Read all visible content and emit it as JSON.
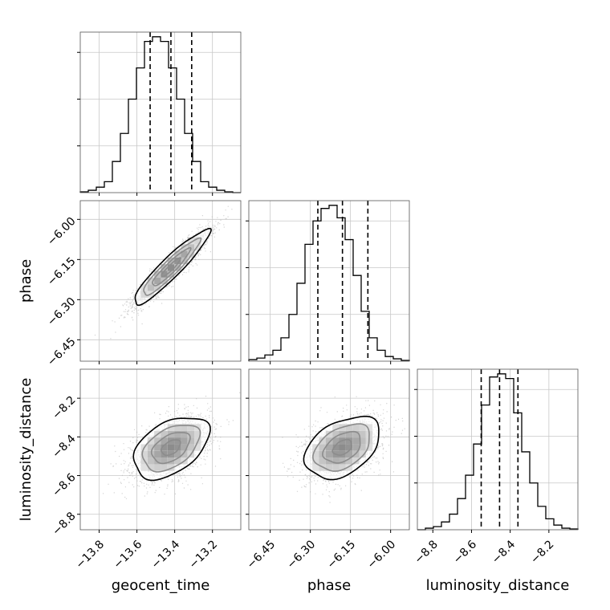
{
  "chart_data": {
    "type": "corner",
    "parameters": [
      "geocent_time",
      "phase",
      "luminosity_distance"
    ],
    "marginals": [
      {
        "parameter": "geocent_time",
        "xlim": [
          -13.9,
          -13.05
        ],
        "ylim": [
          0,
          1.03
        ],
        "bin_edges": [
          -13.9,
          -13.8575,
          -13.815,
          -13.7725,
          -13.73,
          -13.6875,
          -13.645,
          -13.6025,
          -13.56,
          -13.5175,
          -13.475,
          -13.4325,
          -13.39,
          -13.3475,
          -13.305,
          -13.2625,
          -13.22,
          -13.1775,
          -13.135,
          -13.0925,
          -13.05
        ],
        "counts": [
          0.005,
          0.015,
          0.035,
          0.07,
          0.2,
          0.38,
          0.6,
          0.8,
          0.97,
          1.0,
          0.97,
          0.8,
          0.6,
          0.38,
          0.2,
          0.07,
          0.035,
          0.015,
          0.005,
          0.0
        ],
        "quantile_lines": [
          -13.53,
          -13.42,
          -13.31
        ]
      },
      {
        "parameter": "phase",
        "xlim": [
          -6.53,
          -5.93
        ],
        "ylim": [
          0,
          1.03
        ],
        "bin_edges": [
          -6.53,
          -6.5,
          -6.47,
          -6.44,
          -6.41,
          -6.38,
          -6.35,
          -6.32,
          -6.29,
          -6.26,
          -6.23,
          -6.2,
          -6.17,
          -6.14,
          -6.11,
          -6.08,
          -6.05,
          -6.02,
          -5.99,
          -5.96,
          -5.93
        ],
        "counts": [
          0.01,
          0.02,
          0.04,
          0.07,
          0.15,
          0.3,
          0.5,
          0.75,
          0.9,
          0.98,
          1.0,
          0.92,
          0.78,
          0.55,
          0.32,
          0.15,
          0.07,
          0.03,
          0.015,
          0.005
        ],
        "quantile_lines": [
          -6.272,
          -6.18,
          -6.085
        ]
      },
      {
        "parameter": "luminosity_distance",
        "xlim": [
          -8.88,
          -8.05
        ],
        "ylim": [
          0,
          1.03
        ],
        "bin_edges": [
          -8.88,
          -8.8385,
          -8.797,
          -8.7555,
          -8.714,
          -8.6725,
          -8.631,
          -8.5895,
          -8.548,
          -8.5065,
          -8.465,
          -8.4235,
          -8.382,
          -8.3405,
          -8.299,
          -8.2575,
          -8.216,
          -8.1745,
          -8.133,
          -8.0915,
          -8.05
        ],
        "counts": [
          0.0,
          0.01,
          0.02,
          0.05,
          0.1,
          0.2,
          0.35,
          0.55,
          0.8,
          0.98,
          1.0,
          0.97,
          0.75,
          0.5,
          0.3,
          0.15,
          0.07,
          0.03,
          0.01,
          0.005
        ],
        "quantile_lines": [
          -8.55,
          -8.455,
          -8.36
        ]
      }
    ],
    "panels_2d": [
      {
        "x": "geocent_time",
        "y": "phase",
        "xlim": [
          -13.9,
          -13.05
        ],
        "ylim": [
          -6.53,
          -5.93
        ],
        "mean": [
          -13.42,
          -6.18
        ],
        "std": [
          0.1,
          0.07
        ],
        "correlation": 0.93,
        "contour_levels_sigma": [
          0.5,
          1.0,
          1.5,
          2.0
        ]
      },
      {
        "x": "geocent_time",
        "y": "luminosity_distance",
        "xlim": [
          -13.9,
          -13.05
        ],
        "ylim": [
          -8.88,
          -8.05
        ],
        "mean": [
          -13.42,
          -8.455
        ],
        "std": [
          0.1,
          0.08
        ],
        "correlation": 0.45,
        "contour_levels_sigma": [
          0.5,
          1.0,
          1.5,
          2.0
        ]
      },
      {
        "x": "phase",
        "y": "luminosity_distance",
        "xlim": [
          -6.53,
          -5.93
        ],
        "ylim": [
          -8.88,
          -8.05
        ],
        "mean": [
          -6.18,
          -8.455
        ],
        "std": [
          0.07,
          0.08
        ],
        "correlation": 0.4,
        "contour_levels_sigma": [
          0.5,
          1.0,
          1.5,
          2.0
        ]
      }
    ],
    "ticks": {
      "geocent_time": [
        "−13.8",
        "−13.6",
        "−13.4",
        "−13.2"
      ],
      "phase": [
        "−6.45",
        "−6.30",
        "−6.15",
        "−6.00"
      ],
      "luminosity_distance": [
        "−8.8",
        "−8.6",
        "−8.4",
        "−8.2"
      ]
    },
    "tick_values": {
      "geocent_time": [
        -13.8,
        -13.6,
        -13.4,
        -13.2
      ],
      "phase": [
        -6.45,
        -6.3,
        -6.15,
        -6.0
      ],
      "luminosity_distance": [
        -8.8,
        -8.6,
        -8.4,
        -8.2
      ]
    },
    "axis_labels": {
      "x": [
        "geocent_time",
        "phase",
        "luminosity_distance"
      ],
      "y": [
        "phase",
        "luminosity_distance"
      ]
    },
    "grid": true,
    "colors": {
      "line": "#000000",
      "scatter": "#b0b0b0",
      "grid": "#c8c8c8"
    }
  }
}
